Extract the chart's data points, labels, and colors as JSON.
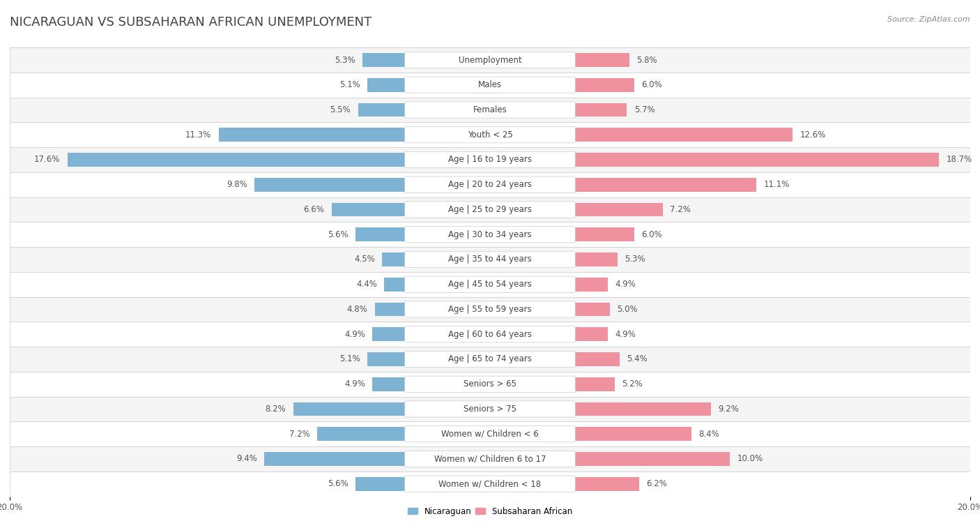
{
  "title": "NICARAGUAN VS SUBSAHARAN AFRICAN UNEMPLOYMENT",
  "source": "Source: ZipAtlas.com",
  "categories": [
    "Unemployment",
    "Males",
    "Females",
    "Youth < 25",
    "Age | 16 to 19 years",
    "Age | 20 to 24 years",
    "Age | 25 to 29 years",
    "Age | 30 to 34 years",
    "Age | 35 to 44 years",
    "Age | 45 to 54 years",
    "Age | 55 to 59 years",
    "Age | 60 to 64 years",
    "Age | 65 to 74 years",
    "Seniors > 65",
    "Seniors > 75",
    "Women w/ Children < 6",
    "Women w/ Children 6 to 17",
    "Women w/ Children < 18"
  ],
  "nicaraguan": [
    5.3,
    5.1,
    5.5,
    11.3,
    17.6,
    9.8,
    6.6,
    5.6,
    4.5,
    4.4,
    4.8,
    4.9,
    5.1,
    4.9,
    8.2,
    7.2,
    9.4,
    5.6
  ],
  "subsaharan": [
    5.8,
    6.0,
    5.7,
    12.6,
    18.7,
    11.1,
    7.2,
    6.0,
    5.3,
    4.9,
    5.0,
    4.9,
    5.4,
    5.2,
    9.2,
    8.4,
    10.0,
    6.2
  ],
  "left_color": "#7fb3d3",
  "right_color": "#f0919f",
  "bar_height": 0.55,
  "xlim": 20.0,
  "background_color": "#ffffff",
  "row_color_odd": "#f5f5f5",
  "row_color_even": "#ffffff",
  "title_fontsize": 13,
  "label_fontsize": 8.5,
  "tick_fontsize": 8.5,
  "legend_label_left": "Nicaraguan",
  "legend_label_right": "Subsaharan African"
}
